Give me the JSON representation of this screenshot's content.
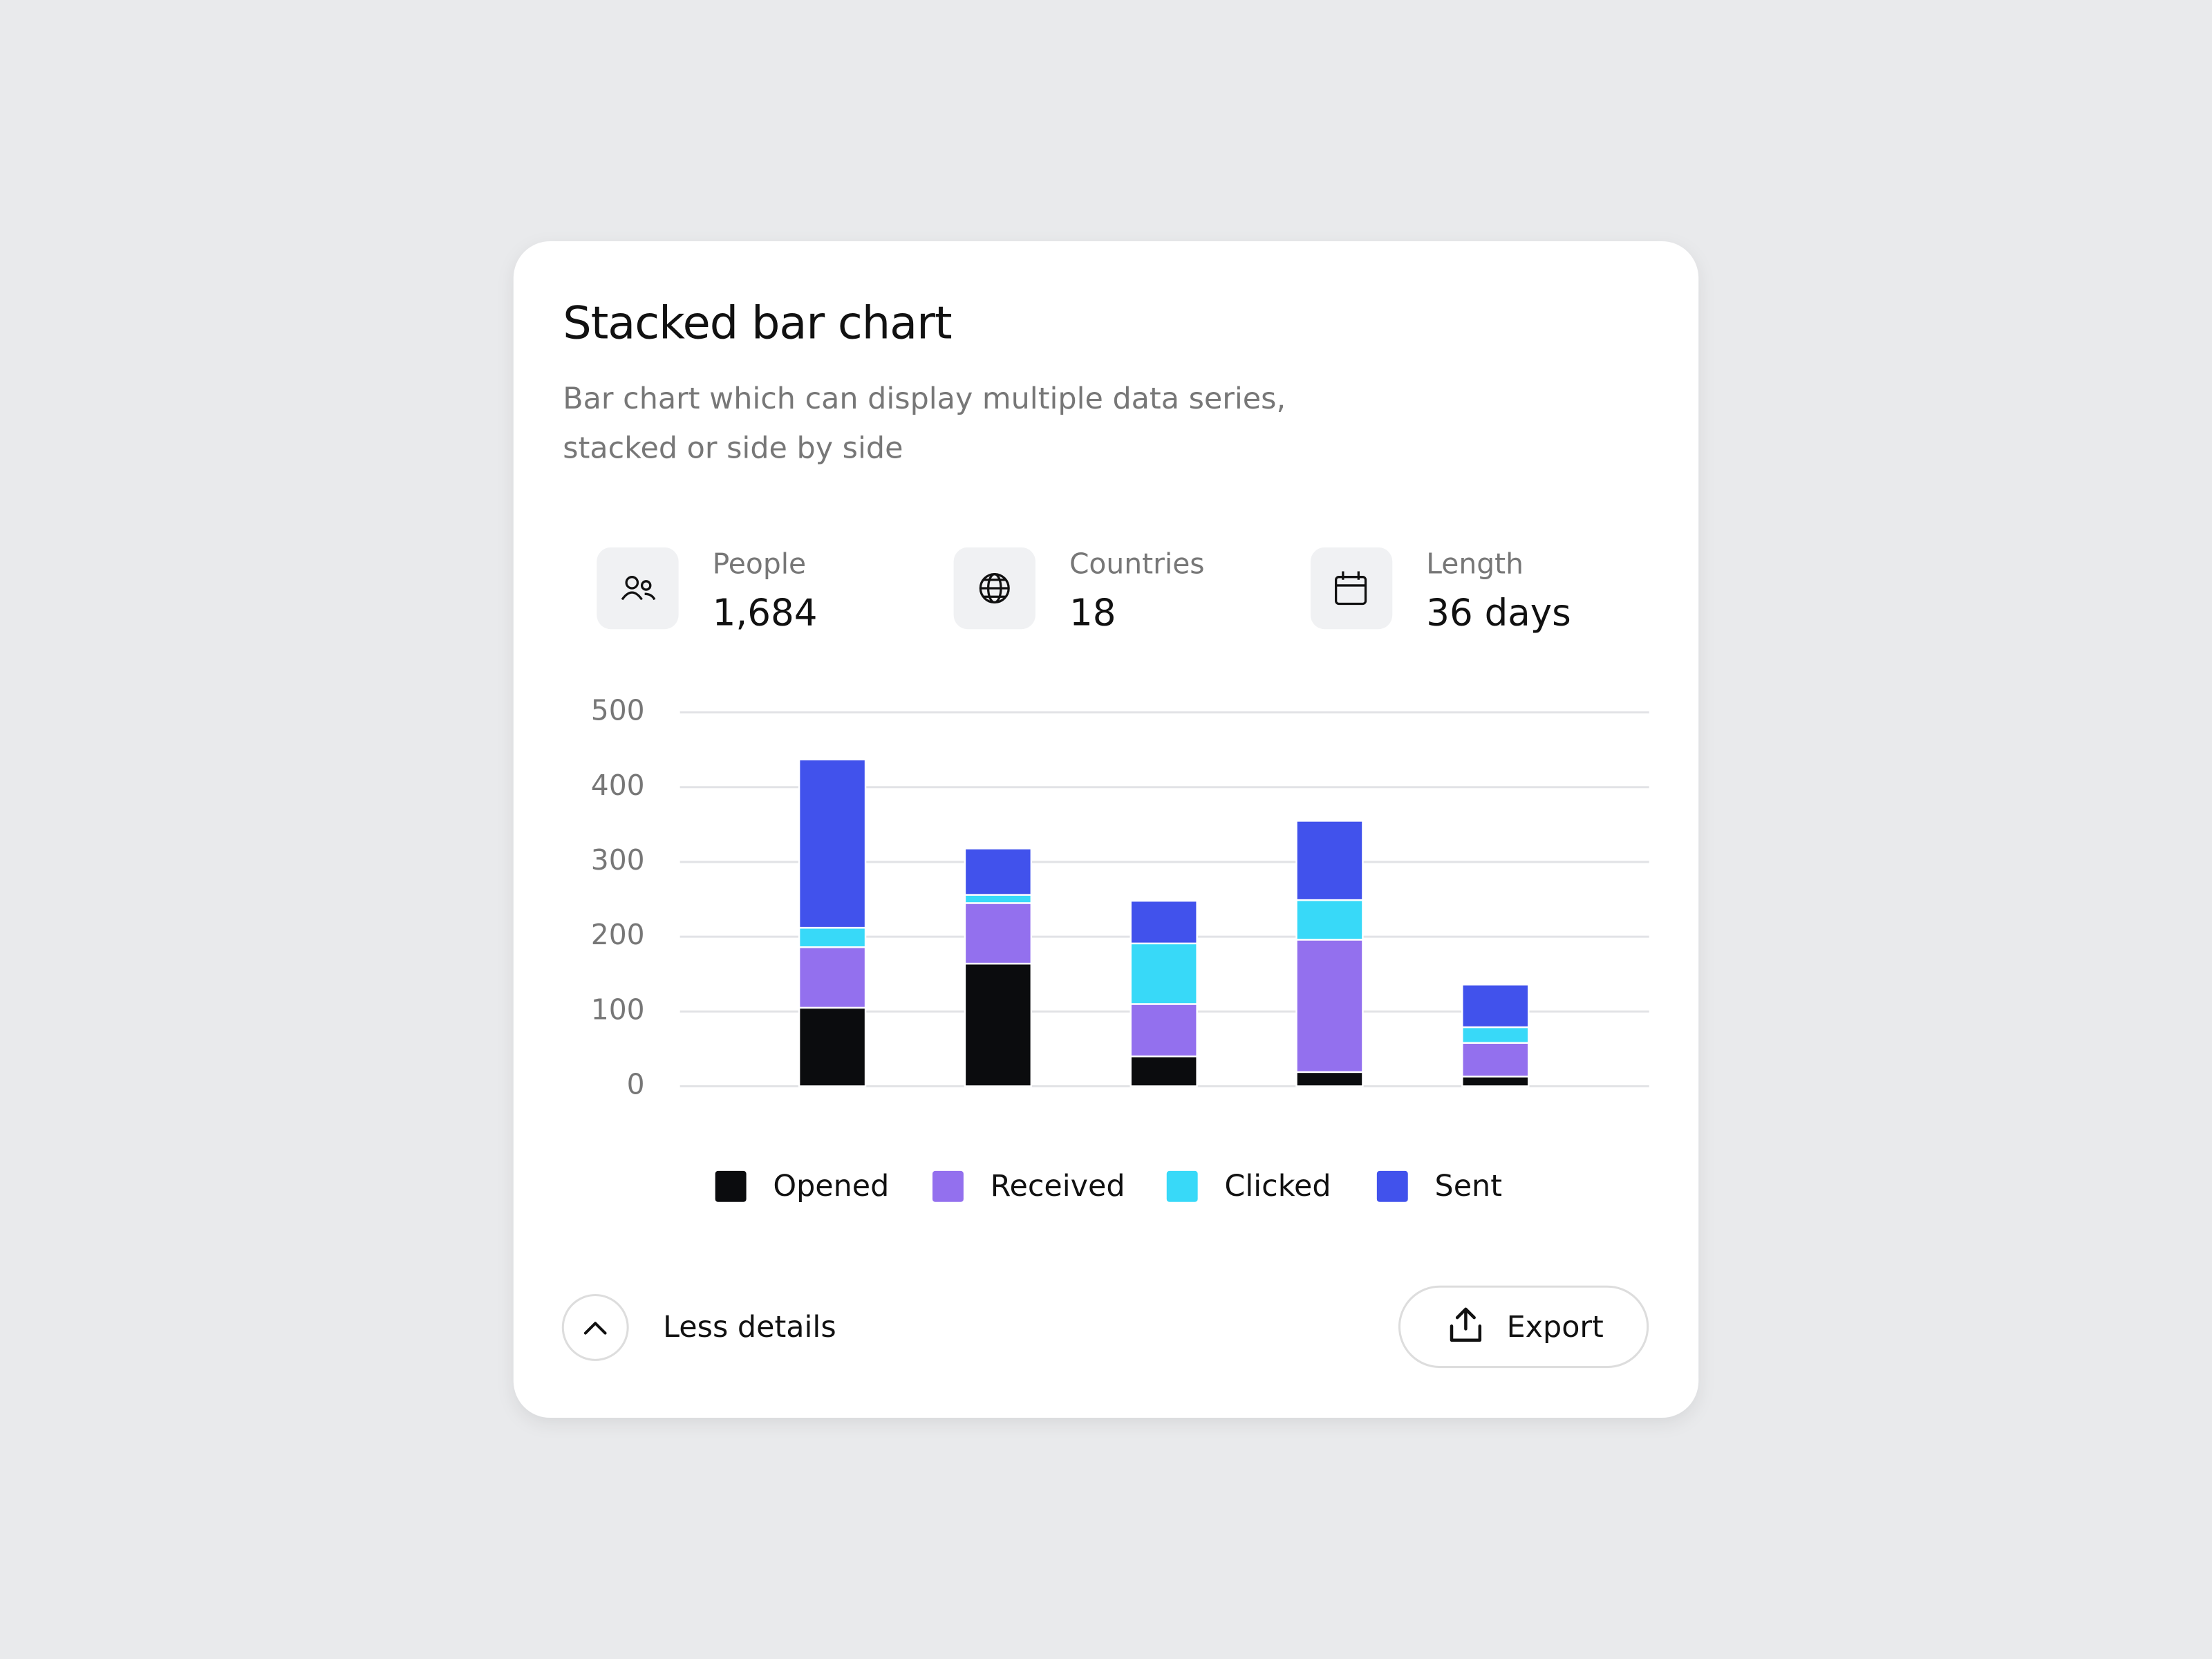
{
  "card": {
    "title": "Stacked bar chart",
    "subtitle_lines": [
      "Bar chart which can display multiple data series,",
      "stacked or side by side"
    ]
  },
  "stats": [
    {
      "label": "People",
      "value": "1,684"
    },
    {
      "label": "Countries",
      "value": "18"
    },
    {
      "label": "Length",
      "value": "36 days"
    }
  ],
  "chart_data": {
    "type": "stacked_bar",
    "categories": [
      null,
      null,
      null,
      null,
      null
    ],
    "series": [
      {
        "name": "Opened",
        "color": "#0b0c0e",
        "values": [
          105,
          164,
          40,
          19,
          13
        ]
      },
      {
        "name": "Received",
        "color": "#9370ee",
        "values": [
          81,
          81,
          70,
          177,
          45
        ]
      },
      {
        "name": "Clicked",
        "color": "#38d9f8",
        "values": [
          26,
          11,
          81,
          53,
          21
        ]
      },
      {
        "name": "Sent",
        "color": "#4152ec",
        "values": [
          225,
          62,
          57,
          106,
          57
        ]
      }
    ],
    "ylim": [
      0,
      500
    ],
    "yticks": [
      0,
      100,
      200,
      300,
      400,
      500
    ],
    "grid": true,
    "legend": "bottom"
  },
  "footer": {
    "toggle": "Less details",
    "export": "Export"
  }
}
